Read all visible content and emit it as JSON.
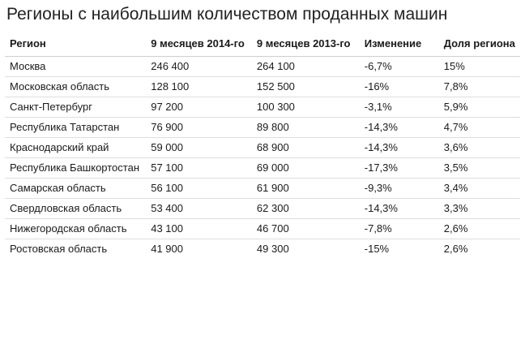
{
  "title": "Регионы с наибольшим количеством проданных машин",
  "table": {
    "headers": {
      "region": "Регион",
      "y2014": "9 месяцев 2014-го",
      "y2013": "9 месяцев 2013-го",
      "change": "Изменение",
      "share": "Доля региона"
    },
    "rows": [
      {
        "region": "Москва",
        "y2014": "246 400",
        "y2013": "264 100",
        "change": "-6,7%",
        "share": "15%"
      },
      {
        "region": "Московская область",
        "y2014": "128 100",
        "y2013": "152 500",
        "change": "-16%",
        "share": "7,8%"
      },
      {
        "region": "Санкт-Петербург",
        "y2014": "97 200",
        "y2013": "100 300",
        "change": "-3,1%",
        "share": "5,9%"
      },
      {
        "region": "Республика Татарстан",
        "y2014": "76 900",
        "y2013": "89 800",
        "change": "-14,3%",
        "share": "4,7%"
      },
      {
        "region": "Краснодарский край",
        "y2014": "59 000",
        "y2013": "68 900",
        "change": "-14,3%",
        "share": "3,6%"
      },
      {
        "region": "Республика Башкортостан",
        "y2014": "57 100",
        "y2013": "69 000",
        "change": "-17,3%",
        "share": "3,5%"
      },
      {
        "region": "Самарская область",
        "y2014": "56 100",
        "y2013": "61 900",
        "change": "-9,3%",
        "share": "3,4%"
      },
      {
        "region": "Свердловская область",
        "y2014": "53 400",
        "y2013": "62 300",
        "change": "-14,3%",
        "share": "3,3%"
      },
      {
        "region": "Нижегородская область",
        "y2014": "43 100",
        "y2013": "46 700",
        "change": "-7,8%",
        "share": "2,6%"
      },
      {
        "region": "Ростовская область",
        "y2014": "41 900",
        "y2013": "49 300",
        "change": "-15%",
        "share": "2,6%"
      }
    ]
  }
}
